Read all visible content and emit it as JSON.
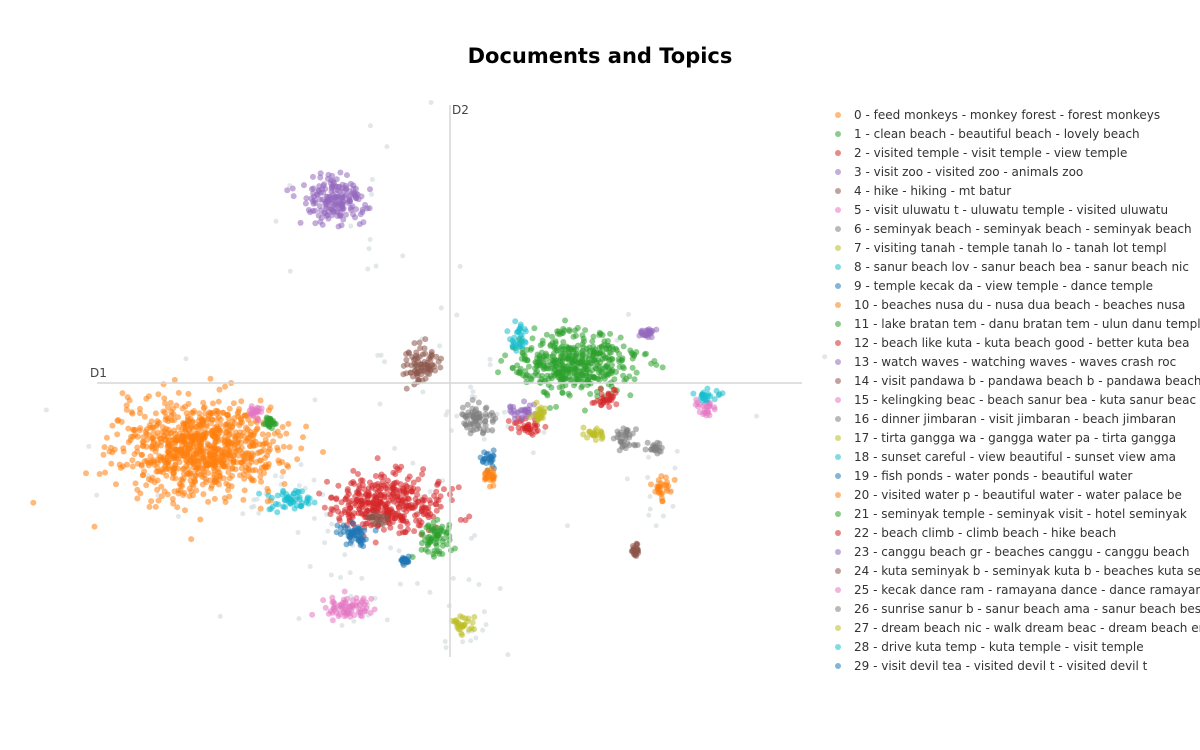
{
  "chart_data": {
    "type": "scatter",
    "title": "Documents and Topics",
    "xlabel": "D1",
    "ylabel": "D2",
    "grid": false,
    "legend_position": "right",
    "outlier_color": "#cfd8dc",
    "series": [
      {
        "name": "0 - feed monkeys - monkey forest - forest monkeys",
        "color": "#ff7f0e",
        "center": [
          -5.0,
          -1.3
        ],
        "spread": [
          1.3,
          0.75
        ]
      },
      {
        "name": "1 - clean beach - beautiful beach - lovely beach",
        "color": "#2ca02c",
        "center": [
          2.5,
          0.4
        ],
        "spread": [
          1.0,
          0.5
        ]
      },
      {
        "name": "2 - visited temple - visit temple - view temple",
        "color": "#d62728",
        "center": [
          -1.2,
          -2.4
        ],
        "spread": [
          0.9,
          0.45
        ]
      },
      {
        "name": "3 - visit zoo - visited zoo - animals zoo",
        "color": "#9467bd",
        "center": [
          -2.3,
          3.66
        ],
        "spread": [
          0.5,
          0.4
        ]
      },
      {
        "name": "4 - hike - hiking - mt batur",
        "color": "#8c564b",
        "center": [
          -0.6,
          0.36
        ],
        "spread": [
          0.3,
          0.3
        ]
      },
      {
        "name": "5 - visit uluwatu t - uluwatu temple  - visited uluwatu",
        "color": "#e377c2",
        "center": [
          -2.1,
          -4.5
        ],
        "spread": [
          0.4,
          0.2
        ]
      },
      {
        "name": "6 - seminyak beach  - seminyak beach  - seminyak beach",
        "color": "#7f7f7f",
        "center": [
          0.5,
          -0.74
        ],
        "spread": [
          0.3,
          0.26
        ]
      },
      {
        "name": "7 - visiting tanah  - temple tanah lo - tanah lot templ",
        "color": "#bcbd22",
        "center": [
          0.24,
          -4.84
        ],
        "spread": [
          0.18,
          0.18
        ]
      },
      {
        "name": "8 - sanur beach lov - sanur beach bea - sanur beach nic",
        "color": "#17becf",
        "center": [
          -3.2,
          -2.34
        ],
        "spread": [
          0.35,
          0.18
        ]
      },
      {
        "name": "9 - temple kecak da - view temple - dance temple",
        "color": "#1f77b4",
        "center": [
          -1.9,
          -3.04
        ],
        "spread": [
          0.28,
          0.22
        ]
      },
      {
        "name": "10 - beaches nusa du - nusa dua beach - beaches nusa",
        "color": "#ff7f0e",
        "center": [
          4.24,
          -2.1
        ],
        "spread": [
          0.14,
          0.22
        ]
      },
      {
        "name": "11 - lake bratan tem - danu bratan tem - ulun danu templ",
        "color": "#2ca02c",
        "center": [
          -0.3,
          -3.14
        ],
        "spread": [
          0.25,
          0.3
        ]
      },
      {
        "name": "12 - beach like kuta - kuta beach good - better kuta bea",
        "color": "#d62728",
        "center": [
          3.1,
          -0.3
        ],
        "spread": [
          0.2,
          0.17
        ]
      },
      {
        "name": "13 - watch waves - watching waves - waves crash roc",
        "color": "#9467bd",
        "center": [
          3.9,
          1.0
        ],
        "spread": [
          0.14,
          0.08
        ]
      },
      {
        "name": "14 - visit pandawa b - pandawa beach b - pandawa beach",
        "color": "#8c564b",
        "center": [
          3.7,
          -3.34
        ],
        "spread": [
          0.07,
          0.14
        ]
      },
      {
        "name": "15 - kelingking beac - beach sanur bea - kuta sanur beac",
        "color": "#e377c2",
        "center": [
          5.1,
          -0.5
        ],
        "spread": [
          0.18,
          0.14
        ]
      },
      {
        "name": "16 - dinner jimbaran - visit jimbaran  - beach jimbaran",
        "color": "#7f7f7f",
        "center": [
          3.5,
          -1.14
        ],
        "spread": [
          0.18,
          0.22
        ]
      },
      {
        "name": "17 - tirta gangga wa - gangga water pa - tirta gangga",
        "color": "#bcbd22",
        "center": [
          2.9,
          -1.04
        ],
        "spread": [
          0.18,
          0.12
        ]
      },
      {
        "name": "18 - sunset careful  - view beautiful  - sunset view ama",
        "color": "#17becf",
        "center": [
          1.36,
          0.86
        ],
        "spread": [
          0.16,
          0.22
        ]
      },
      {
        "name": "19 - fish ponds - water ponds - beautiful water",
        "color": "#1f77b4",
        "center": [
          0.76,
          -1.5
        ],
        "spread": [
          0.14,
          0.14
        ]
      },
      {
        "name": "20 - visited water p - beautiful water - water palace be",
        "color": "#ff7f0e",
        "center": [
          0.8,
          -1.88
        ],
        "spread": [
          0.14,
          0.14
        ]
      },
      {
        "name": "21 - seminyak temple - seminyak visit - hotel seminyak",
        "color": "#2ca02c",
        "center": [
          -3.6,
          -0.8
        ],
        "spread": [
          0.08,
          0.08
        ]
      },
      {
        "name": "22 - beach climb - climb beach - hike beach",
        "color": "#d62728",
        "center": [
          1.56,
          -0.9
        ],
        "spread": [
          0.3,
          0.14
        ]
      },
      {
        "name": "23 - canggu beach gr - beaches canggu - canggu beach",
        "color": "#9467bd",
        "center": [
          1.4,
          -0.54
        ],
        "spread": [
          0.2,
          0.16
        ]
      },
      {
        "name": "24 - kuta seminyak b - seminyak kuta b - beaches kuta se",
        "color": "#8c564b",
        "center": [
          -1.4,
          -2.7
        ],
        "spread": [
          0.14,
          0.1
        ]
      },
      {
        "name": "25 - kecak dance ram - ramayana dance - dance ramayana",
        "color": "#e377c2",
        "center": [
          -3.9,
          -0.58
        ],
        "spread": [
          0.1,
          0.1
        ]
      },
      {
        "name": "26 - sunrise sanur b - sanur beach ama - sanur beach bes",
        "color": "#7f7f7f",
        "center": [
          4.1,
          -1.3
        ],
        "spread": [
          0.1,
          0.1
        ]
      },
      {
        "name": "27 - dream beach nic - walk dream beac - dream beach enj",
        "color": "#bcbd22",
        "center": [
          1.76,
          -0.64
        ],
        "spread": [
          0.14,
          0.14
        ]
      },
      {
        "name": "28 - drive kuta temp - kuta temple - visit temple",
        "color": "#17becf",
        "center": [
          5.16,
          -0.24
        ],
        "spread": [
          0.2,
          0.1
        ]
      },
      {
        "name": "29 - visit devil tea - visited devil t - visited devil t",
        "color": "#1f77b4",
        "center": [
          -0.9,
          -3.54
        ],
        "spread": [
          0.06,
          0.05
        ]
      }
    ]
  }
}
